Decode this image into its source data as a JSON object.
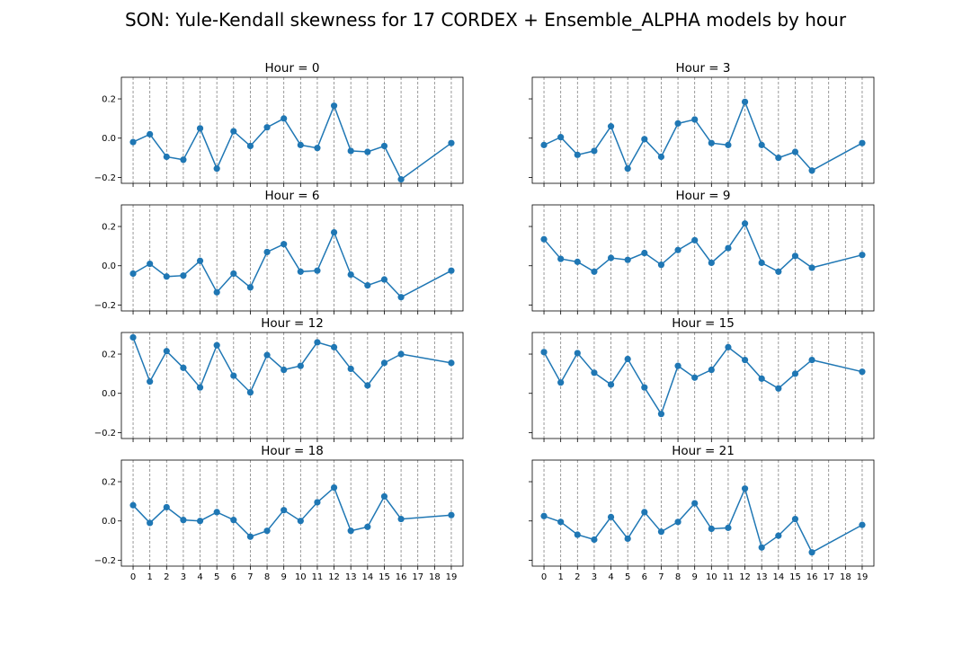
{
  "figure": {
    "title": "SON: Yule-Kendall skewness for 17 CORDEX + Ensemble_ALPHA models by hour"
  },
  "colors": {
    "series": "#1f77b4",
    "gridline": "#808080",
    "axes": "#000000"
  },
  "chart_data": [
    {
      "type": "line",
      "title": "Hour = 0",
      "x": [
        0,
        1,
        2,
        3,
        4,
        5,
        6,
        7,
        8,
        9,
        10,
        11,
        12,
        13,
        14,
        15,
        16,
        19
      ],
      "values": [
        -0.02,
        0.02,
        -0.095,
        -0.11,
        0.05,
        -0.155,
        0.035,
        -0.04,
        0.055,
        0.1,
        -0.035,
        -0.05,
        0.165,
        -0.065,
        -0.07,
        -0.04,
        -0.21,
        -0.025
      ],
      "xticks": [
        0,
        1,
        2,
        3,
        4,
        5,
        6,
        7,
        8,
        9,
        10,
        11,
        12,
        13,
        14,
        15,
        16,
        17,
        18,
        19
      ],
      "yticks": [
        "-0.2",
        "0.0",
        "0.2"
      ],
      "ylim": [
        -0.23,
        0.31
      ],
      "xlim": [
        -0.7,
        19.7
      ],
      "grid": "vertical dashed"
    },
    {
      "type": "line",
      "title": "Hour = 3",
      "x": [
        0,
        1,
        2,
        3,
        4,
        5,
        6,
        7,
        8,
        9,
        10,
        11,
        12,
        13,
        14,
        15,
        16,
        19
      ],
      "values": [
        -0.035,
        0.005,
        -0.085,
        -0.065,
        0.06,
        -0.155,
        -0.005,
        -0.095,
        0.075,
        0.095,
        -0.025,
        -0.035,
        0.185,
        -0.035,
        -0.1,
        -0.07,
        -0.165,
        -0.025
      ],
      "xticks": [
        0,
        1,
        2,
        3,
        4,
        5,
        6,
        7,
        8,
        9,
        10,
        11,
        12,
        13,
        14,
        15,
        16,
        17,
        18,
        19
      ],
      "yticks": [
        "-0.2",
        "0.0",
        "0.2"
      ],
      "ylim": [
        -0.23,
        0.31
      ],
      "xlim": [
        -0.7,
        19.7
      ],
      "grid": "vertical dashed"
    },
    {
      "type": "line",
      "title": "Hour = 6",
      "x": [
        0,
        1,
        2,
        3,
        4,
        5,
        6,
        7,
        8,
        9,
        10,
        11,
        12,
        13,
        14,
        15,
        16,
        19
      ],
      "values": [
        -0.04,
        0.01,
        -0.055,
        -0.05,
        0.025,
        -0.135,
        -0.04,
        -0.11,
        0.07,
        0.11,
        -0.03,
        -0.025,
        0.17,
        -0.045,
        -0.1,
        -0.07,
        -0.16,
        -0.025
      ],
      "xticks": [
        0,
        1,
        2,
        3,
        4,
        5,
        6,
        7,
        8,
        9,
        10,
        11,
        12,
        13,
        14,
        15,
        16,
        17,
        18,
        19
      ],
      "yticks": [
        "-0.2",
        "0.0",
        "0.2"
      ],
      "ylim": [
        -0.23,
        0.31
      ],
      "xlim": [
        -0.7,
        19.7
      ],
      "grid": "vertical dashed"
    },
    {
      "type": "line",
      "title": "Hour = 9",
      "x": [
        0,
        1,
        2,
        3,
        4,
        5,
        6,
        7,
        8,
        9,
        10,
        11,
        12,
        13,
        14,
        15,
        16,
        19
      ],
      "values": [
        0.135,
        0.035,
        0.02,
        -0.03,
        0.04,
        0.03,
        0.065,
        0.005,
        0.08,
        0.13,
        0.015,
        0.09,
        0.215,
        0.015,
        -0.03,
        0.05,
        -0.01,
        0.055
      ],
      "xticks": [
        0,
        1,
        2,
        3,
        4,
        5,
        6,
        7,
        8,
        9,
        10,
        11,
        12,
        13,
        14,
        15,
        16,
        17,
        18,
        19
      ],
      "yticks": [
        "-0.2",
        "0.0",
        "0.2"
      ],
      "ylim": [
        -0.23,
        0.31
      ],
      "xlim": [
        -0.7,
        19.7
      ],
      "grid": "vertical dashed"
    },
    {
      "type": "line",
      "title": "Hour = 12",
      "x": [
        0,
        1,
        2,
        3,
        4,
        5,
        6,
        7,
        8,
        9,
        10,
        11,
        12,
        13,
        14,
        15,
        16,
        19
      ],
      "values": [
        0.285,
        0.06,
        0.215,
        0.13,
        0.03,
        0.245,
        0.09,
        0.005,
        0.195,
        0.12,
        0.14,
        0.26,
        0.235,
        0.125,
        0.04,
        0.155,
        0.2,
        0.155
      ],
      "xticks": [
        0,
        1,
        2,
        3,
        4,
        5,
        6,
        7,
        8,
        9,
        10,
        11,
        12,
        13,
        14,
        15,
        16,
        17,
        18,
        19
      ],
      "yticks": [
        "-0.2",
        "0.0",
        "0.2"
      ],
      "ylim": [
        -0.23,
        0.31
      ],
      "xlim": [
        -0.7,
        19.7
      ],
      "grid": "vertical dashed"
    },
    {
      "type": "line",
      "title": "Hour = 15",
      "x": [
        0,
        1,
        2,
        3,
        4,
        5,
        6,
        7,
        8,
        9,
        10,
        11,
        12,
        13,
        14,
        15,
        16,
        19
      ],
      "values": [
        0.21,
        0.055,
        0.205,
        0.105,
        0.045,
        0.175,
        0.03,
        -0.105,
        0.14,
        0.08,
        0.12,
        0.235,
        0.17,
        0.075,
        0.025,
        0.1,
        0.17,
        0.11
      ],
      "xticks": [
        0,
        1,
        2,
        3,
        4,
        5,
        6,
        7,
        8,
        9,
        10,
        11,
        12,
        13,
        14,
        15,
        16,
        17,
        18,
        19
      ],
      "yticks": [
        "-0.2",
        "0.0",
        "0.2"
      ],
      "ylim": [
        -0.23,
        0.31
      ],
      "xlim": [
        -0.7,
        19.7
      ],
      "grid": "vertical dashed"
    },
    {
      "type": "line",
      "title": "Hour = 18",
      "x": [
        0,
        1,
        2,
        3,
        4,
        5,
        6,
        7,
        8,
        9,
        10,
        11,
        12,
        13,
        14,
        15,
        16,
        19
      ],
      "values": [
        0.08,
        -0.01,
        0.07,
        0.005,
        0,
        0.045,
        0.005,
        -0.08,
        -0.05,
        0.055,
        0,
        0.095,
        0.17,
        -0.05,
        -0.03,
        0.125,
        0.01,
        0.03
      ],
      "xticks": [
        0,
        1,
        2,
        3,
        4,
        5,
        6,
        7,
        8,
        9,
        10,
        11,
        12,
        13,
        14,
        15,
        16,
        17,
        18,
        19
      ],
      "yticks": [
        "-0.2",
        "0.0",
        "0.2"
      ],
      "ylim": [
        -0.23,
        0.31
      ],
      "xlim": [
        -0.7,
        19.7
      ],
      "grid": "vertical dashed"
    },
    {
      "type": "line",
      "title": "Hour = 21",
      "x": [
        0,
        1,
        2,
        3,
        4,
        5,
        6,
        7,
        8,
        9,
        10,
        11,
        12,
        13,
        14,
        15,
        16,
        19
      ],
      "values": [
        0.025,
        -0.005,
        -0.07,
        -0.095,
        0.02,
        -0.09,
        0.045,
        -0.055,
        -0.005,
        0.09,
        -0.04,
        -0.035,
        0.165,
        -0.135,
        -0.075,
        0.01,
        -0.16,
        -0.02
      ],
      "xticks": [
        0,
        1,
        2,
        3,
        4,
        5,
        6,
        7,
        8,
        9,
        10,
        11,
        12,
        13,
        14,
        15,
        16,
        17,
        18,
        19
      ],
      "yticks": [
        "-0.2",
        "0.0",
        "0.2"
      ],
      "ylim": [
        -0.23,
        0.31
      ],
      "xlim": [
        -0.7,
        19.7
      ],
      "grid": "vertical dashed"
    }
  ]
}
